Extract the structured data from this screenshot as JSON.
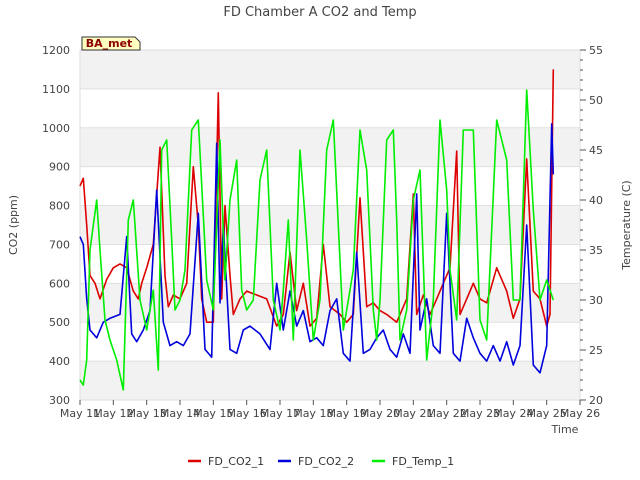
{
  "chart_data": {
    "type": "line",
    "title": "FD Chamber A CO2 and Temp",
    "badge": "BA_met",
    "xlabel": "Time",
    "ylabel": "CO2 (ppm)",
    "y2label": "Temperature (C)",
    "xlim": [
      11,
      26
    ],
    "ylim": [
      300,
      1200
    ],
    "y2lim": [
      20,
      55
    ],
    "x_ticks": [
      11,
      12,
      13,
      14,
      15,
      16,
      17,
      18,
      19,
      20,
      21,
      22,
      23,
      24,
      25,
      26
    ],
    "x_tick_labels": [
      "May 11",
      "May 12",
      "May 13",
      "May 14",
      "May 15",
      "May 16",
      "May 17",
      "May 18",
      "May 19",
      "May 20",
      "May 21",
      "May 22",
      "May 23",
      "May 24",
      "May 25",
      "May 26"
    ],
    "y_ticks": [
      300,
      400,
      500,
      600,
      700,
      800,
      900,
      1000,
      1100,
      1200
    ],
    "y2_ticks": [
      20,
      25,
      30,
      35,
      40,
      45,
      50,
      55
    ],
    "grid": "horizontal bands",
    "legend_position": "bottom",
    "series": [
      {
        "name": "FD_CO2_1",
        "color": "#dd0000",
        "axis": "left",
        "x": [
          11.0,
          11.1,
          11.2,
          11.3,
          11.45,
          11.6,
          11.8,
          12.0,
          12.2,
          12.4,
          12.6,
          12.75,
          12.85,
          13.0,
          13.2,
          13.4,
          13.55,
          13.65,
          13.8,
          14.0,
          14.2,
          14.4,
          14.55,
          14.65,
          14.8,
          15.0,
          15.15,
          15.25,
          15.35,
          15.5,
          15.6,
          15.8,
          16.0,
          16.3,
          16.6,
          16.9,
          17.1,
          17.3,
          17.5,
          17.7,
          17.9,
          18.1,
          18.3,
          18.5,
          18.8,
          19.0,
          19.2,
          19.4,
          19.6,
          19.8,
          20.0,
          20.2,
          20.5,
          20.8,
          21.0,
          21.1,
          21.3,
          21.5,
          21.7,
          21.9,
          22.1,
          22.3,
          22.4,
          22.6,
          22.8,
          23.0,
          23.2,
          23.5,
          23.8,
          24.0,
          24.2,
          24.4,
          24.6,
          24.8,
          25.0,
          25.1,
          25.2
        ],
        "y": [
          850,
          870,
          750,
          620,
          600,
          560,
          610,
          640,
          650,
          640,
          580,
          560,
          600,
          640,
          700,
          950,
          620,
          540,
          570,
          560,
          600,
          900,
          750,
          560,
          500,
          500,
          1090,
          560,
          800,
          620,
          520,
          560,
          580,
          570,
          560,
          490,
          520,
          680,
          530,
          600,
          490,
          510,
          700,
          540,
          520,
          500,
          520,
          820,
          540,
          550,
          530,
          520,
          500,
          560,
          830,
          520,
          570,
          520,
          560,
          600,
          640,
          940,
          520,
          560,
          600,
          560,
          550,
          640,
          580,
          510,
          560,
          920,
          580,
          560,
          490,
          520,
          1150
        ]
      },
      {
        "name": "FD_CO2_2",
        "color": "#0000dd",
        "axis": "left",
        "x": [
          11.0,
          11.1,
          11.2,
          11.3,
          11.5,
          11.7,
          11.9,
          12.2,
          12.4,
          12.55,
          12.7,
          12.9,
          13.1,
          13.3,
          13.5,
          13.7,
          13.9,
          14.1,
          14.3,
          14.55,
          14.75,
          14.95,
          15.1,
          15.2,
          15.3,
          15.5,
          15.7,
          15.9,
          16.1,
          16.4,
          16.7,
          16.9,
          17.1,
          17.3,
          17.5,
          17.7,
          17.9,
          18.1,
          18.3,
          18.5,
          18.7,
          18.9,
          19.1,
          19.3,
          19.5,
          19.7,
          19.9,
          20.1,
          20.3,
          20.5,
          20.7,
          20.9,
          21.1,
          21.2,
          21.4,
          21.6,
          21.8,
          22.0,
          22.2,
          22.4,
          22.6,
          22.8,
          23.0,
          23.2,
          23.4,
          23.6,
          23.8,
          24.0,
          24.2,
          24.4,
          24.6,
          24.8,
          25.0,
          25.15,
          25.2
        ],
        "y": [
          720,
          700,
          560,
          480,
          460,
          500,
          510,
          520,
          720,
          470,
          450,
          480,
          530,
          840,
          500,
          440,
          450,
          440,
          470,
          780,
          430,
          410,
          960,
          550,
          750,
          430,
          420,
          480,
          490,
          470,
          430,
          600,
          480,
          580,
          490,
          530,
          450,
          460,
          440,
          530,
          560,
          420,
          400,
          680,
          420,
          430,
          460,
          480,
          430,
          410,
          470,
          420,
          830,
          480,
          560,
          440,
          420,
          780,
          420,
          400,
          510,
          460,
          420,
          400,
          440,
          400,
          450,
          390,
          440,
          750,
          390,
          370,
          440,
          1010,
          880
        ]
      },
      {
        "name": "FD_Temp_1",
        "color": "#00ee00",
        "axis": "right",
        "x": [
          11.0,
          11.1,
          11.2,
          11.3,
          11.5,
          11.6,
          11.75,
          11.9,
          12.1,
          12.3,
          12.45,
          12.6,
          12.8,
          13.0,
          13.2,
          13.35,
          13.45,
          13.6,
          13.75,
          13.85,
          14.0,
          14.15,
          14.35,
          14.55,
          14.8,
          15.0,
          15.2,
          15.35,
          15.5,
          15.7,
          15.85,
          16.0,
          16.2,
          16.4,
          16.6,
          16.8,
          17.0,
          17.1,
          17.25,
          17.4,
          17.6,
          17.8,
          18.0,
          18.2,
          18.4,
          18.6,
          18.9,
          19.0,
          19.2,
          19.4,
          19.6,
          19.8,
          19.9,
          20.0,
          20.2,
          20.4,
          20.5,
          20.6,
          20.8,
          21.0,
          21.2,
          21.4,
          21.6,
          21.8,
          22.0,
          22.1,
          22.3,
          22.5,
          22.8,
          23.0,
          23.2,
          23.5,
          23.8,
          24.0,
          24.2,
          24.4,
          24.6,
          24.8,
          25.0,
          25.2
        ],
        "y": [
          22,
          21.5,
          24,
          35,
          40,
          35,
          28,
          26,
          24,
          21,
          38,
          40,
          30,
          27,
          31,
          23,
          45,
          46,
          36,
          29,
          30,
          33,
          47,
          48,
          32,
          29,
          46,
          32,
          40,
          44,
          31,
          29,
          30,
          42,
          45,
          30,
          27,
          31,
          38,
          26,
          45,
          36,
          26,
          30,
          45,
          48,
          27,
          29,
          33,
          47,
          43,
          29,
          26,
          30,
          46,
          47,
          38,
          26,
          29,
          40,
          43,
          24,
          30,
          48,
          41,
          33,
          28,
          47,
          47,
          28,
          26,
          48,
          44,
          30,
          30,
          51,
          39,
          30,
          32,
          30
        ]
      }
    ]
  }
}
